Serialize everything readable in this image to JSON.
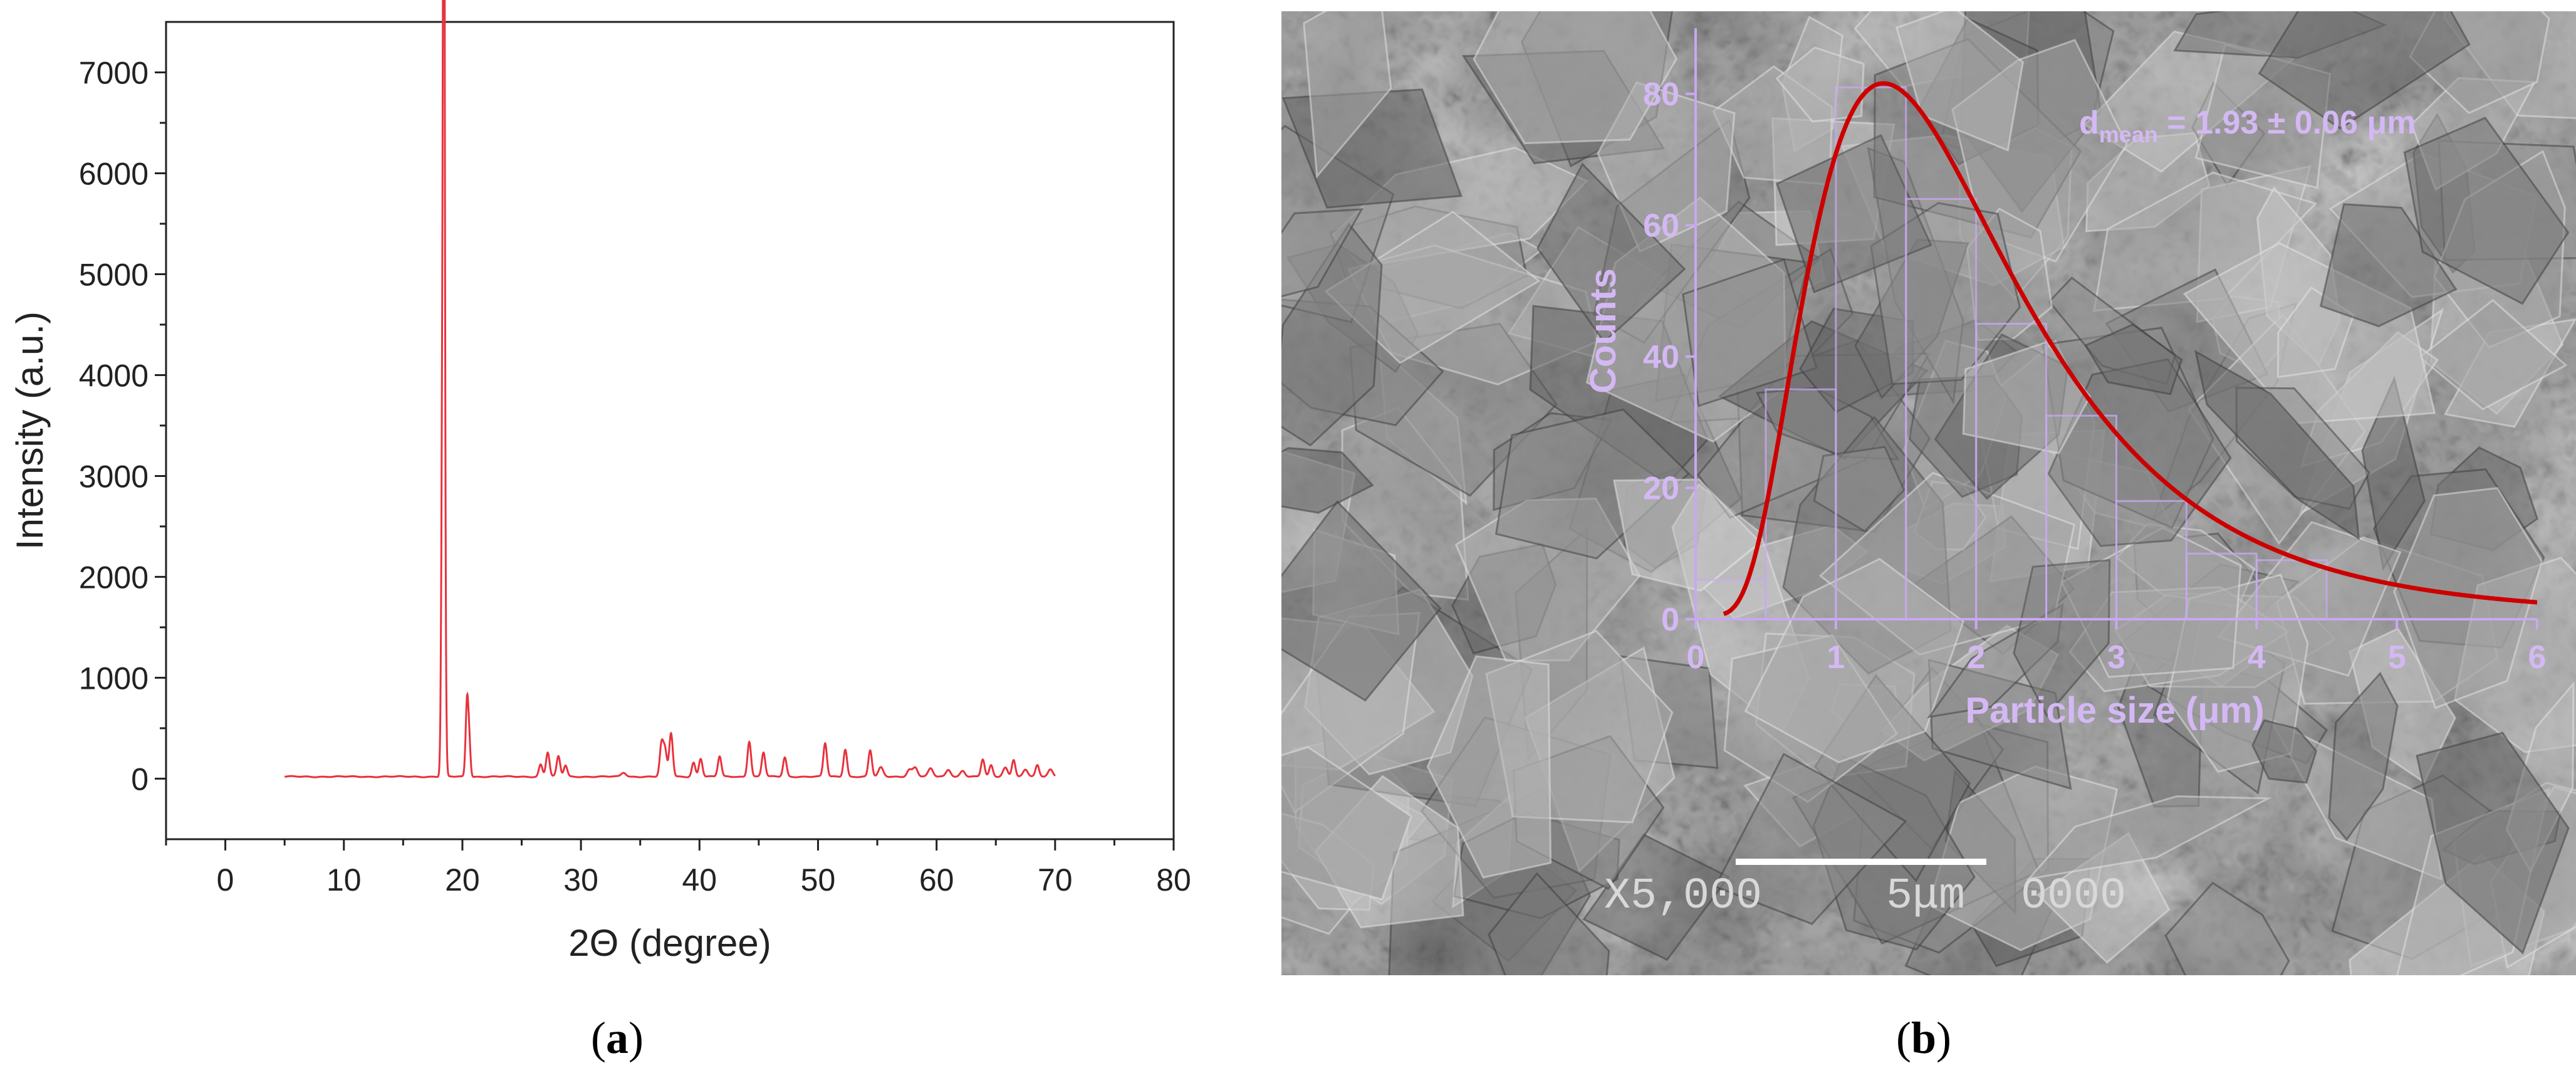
{
  "panel_labels": {
    "a": "a",
    "b": "b"
  },
  "colors": {
    "xrd_line": "#e8323c",
    "fit_curve": "#cc0000",
    "histogram_overlay": "#c8a8f0",
    "axis": "#222222"
  },
  "sem": {
    "magnification": "X5,000",
    "scale_label": "5μm",
    "image_code": "0000",
    "background_color": "#8a8a8a"
  },
  "chart_data": [
    {
      "type": "line",
      "xlabel": "2Θ (degree)",
      "ylabel": "Intensity (a.u.)",
      "xlim": [
        -5,
        80
      ],
      "ylim": [
        -600,
        7500
      ],
      "xticks": [
        0,
        10,
        20,
        30,
        40,
        50,
        60,
        70,
        80
      ],
      "yticks": [
        0,
        1000,
        2000,
        3000,
        4000,
        5000,
        6000,
        7000
      ],
      "grid": false,
      "series": [
        {
          "x_range": [
            5,
            70
          ],
          "baseline": 20,
          "peaks": [
            [
              18.4,
              6750,
              0.12
            ],
            [
              18.45,
              5200,
              0.06
            ],
            [
              20.4,
              780,
              0.12
            ],
            [
              20.6,
              250,
              0.1
            ],
            [
              26.6,
              120,
              0.15
            ],
            [
              27.2,
              240,
              0.15
            ],
            [
              28.1,
              200,
              0.15
            ],
            [
              28.7,
              110,
              0.15
            ],
            [
              33.6,
              40,
              0.2
            ],
            [
              36.8,
              320,
              0.15
            ],
            [
              37.1,
              250,
              0.15
            ],
            [
              37.6,
              430,
              0.15
            ],
            [
              39.5,
              140,
              0.15
            ],
            [
              40.1,
              180,
              0.15
            ],
            [
              41.7,
              200,
              0.15
            ],
            [
              44.2,
              350,
              0.15
            ],
            [
              45.4,
              240,
              0.15
            ],
            [
              47.2,
              190,
              0.15
            ],
            [
              50.6,
              330,
              0.15
            ],
            [
              52.3,
              270,
              0.15
            ],
            [
              54.4,
              260,
              0.15
            ],
            [
              55.3,
              90,
              0.2
            ],
            [
              57.7,
              70,
              0.2
            ],
            [
              58.2,
              90,
              0.2
            ],
            [
              59.5,
              80,
              0.2
            ],
            [
              61.0,
              70,
              0.2
            ],
            [
              62.2,
              60,
              0.2
            ],
            [
              63.9,
              170,
              0.15
            ],
            [
              64.6,
              110,
              0.15
            ],
            [
              65.8,
              90,
              0.2
            ],
            [
              66.5,
              170,
              0.15
            ],
            [
              67.5,
              70,
              0.2
            ],
            [
              68.5,
              110,
              0.15
            ],
            [
              69.6,
              70,
              0.2
            ]
          ]
        }
      ]
    },
    {
      "type": "bar",
      "xlabel": "Particle size (μm)",
      "ylabel": "Counts",
      "xlim": [
        0,
        6
      ],
      "ylim": [
        0,
        90
      ],
      "xticks": [
        0,
        1,
        2,
        3,
        4,
        5,
        6
      ],
      "yticks": [
        0,
        20,
        40,
        60,
        80
      ],
      "bin_edges": [
        0,
        0.5,
        1.0,
        1.5,
        2.0,
        2.5,
        3.0,
        3.5,
        4.0,
        4.5
      ],
      "values": [
        6,
        35,
        81,
        64,
        45,
        31,
        18,
        10,
        9
      ],
      "annotation": {
        "prefix": "d",
        "subscript": "mean",
        "text": " = 1.93 ± 0.06 μm"
      },
      "fit": {
        "type": "lognormal",
        "peak_x": 1.34,
        "peak_y": 81,
        "start_x": 0.2
      }
    }
  ]
}
